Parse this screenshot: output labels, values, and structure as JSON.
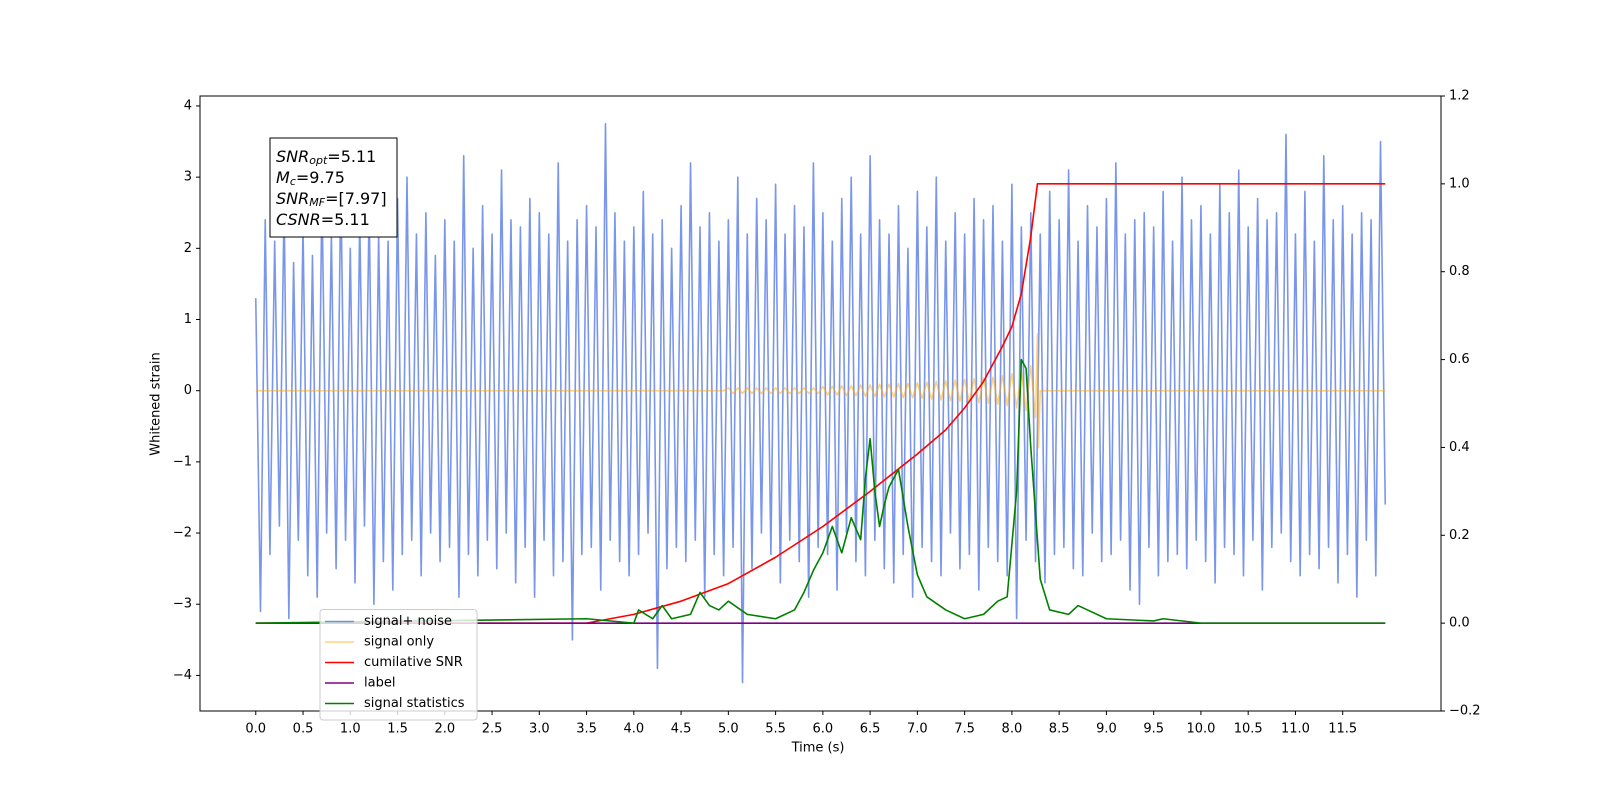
{
  "chart_data": {
    "type": "line",
    "xlabel": "Time (s)",
    "ylabel": "Whitened strain",
    "xlim": [
      -0.59,
      12.54
    ],
    "ylim": [
      -4.5,
      4.14
    ],
    "y2lim": [
      -0.2,
      1.2
    ],
    "xticks": [
      {
        "value": 0,
        "label": "0.0"
      },
      0.5,
      {
        "value": 1,
        "label": "1.0"
      },
      1.5,
      {
        "value": 2,
        "label": "2.0"
      },
      2.5,
      {
        "value": 3,
        "label": "3.0"
      },
      3.5,
      {
        "value": 4,
        "label": "4.0"
      },
      4.5,
      {
        "value": 5,
        "label": "5.0"
      },
      5.5,
      {
        "value": 6,
        "label": "6.0"
      },
      6.5,
      {
        "value": 7,
        "label": "7.0"
      },
      7.5,
      {
        "value": 8,
        "label": "8.0"
      },
      8.5,
      {
        "value": 9,
        "label": "9.0"
      },
      9.5,
      {
        "value": 10,
        "label": "10.0"
      },
      10.5,
      {
        "value": 11,
        "label": "11.0"
      },
      11.5
    ],
    "yticks": [
      {
        "value": -4,
        "label": "−4"
      },
      {
        "value": -3,
        "label": "−3"
      },
      {
        "value": -2,
        "label": "−2"
      },
      {
        "value": -1,
        "label": "−1"
      },
      0,
      1,
      2,
      3,
      4
    ],
    "y2ticks": [
      {
        "value": -0.2,
        "label": "−0.2"
      },
      {
        "value": 0,
        "label": "0.0"
      },
      0.2,
      0.4,
      0.6,
      0.8,
      {
        "value": 1,
        "label": "1.0"
      },
      1.2
    ],
    "legend": "lower left",
    "stats_box": [
      {
        "base": "SNR",
        "sub": "opt",
        "rest": "=5.11"
      },
      {
        "base": "M",
        "sub": "c",
        "rest": "=9.75"
      },
      {
        "base": "SNR",
        "sub": "MF",
        "rest": "=[7.97]"
      },
      {
        "base": "CSNR",
        "rest": "=5.11"
      }
    ],
    "series": [
      {
        "name": "signal+ noise",
        "color": "#4169e1",
        "alpha": 0.7,
        "x": [
          0,
          0.05,
          0.1,
          0.15,
          0.2,
          0.25,
          0.3,
          0.35,
          0.4,
          0.45,
          0.5,
          0.55,
          0.6,
          0.65,
          0.7,
          0.75,
          0.8,
          0.85,
          0.9,
          0.95,
          1,
          1.05,
          1.1,
          1.15,
          1.2,
          1.25,
          1.3,
          1.35,
          1.4,
          1.45,
          1.5,
          1.55,
          1.6,
          1.65,
          1.7,
          1.75,
          1.8,
          1.85,
          1.9,
          1.95,
          2,
          2.05,
          2.1,
          2.15,
          2.2,
          2.25,
          2.3,
          2.35,
          2.4,
          2.45,
          2.5,
          2.55,
          2.6,
          2.65,
          2.7,
          2.75,
          2.8,
          2.85,
          2.9,
          2.95,
          3,
          3.05,
          3.1,
          3.15,
          3.2,
          3.25,
          3.3,
          3.35,
          3.4,
          3.45,
          3.5,
          3.55,
          3.6,
          3.65,
          3.7,
          3.75,
          3.8,
          3.85,
          3.9,
          3.95,
          4,
          4.05,
          4.1,
          4.15,
          4.2,
          4.25,
          4.3,
          4.35,
          4.4,
          4.45,
          4.5,
          4.55,
          4.6,
          4.65,
          4.7,
          4.75,
          4.8,
          4.85,
          4.9,
          4.95,
          5,
          5.05,
          5.1,
          5.15,
          5.2,
          5.25,
          5.3,
          5.35,
          5.4,
          5.45,
          5.5,
          5.55,
          5.6,
          5.65,
          5.7,
          5.75,
          5.8,
          5.85,
          5.9,
          5.95,
          6,
          6.05,
          6.1,
          6.15,
          6.2,
          6.25,
          6.3,
          6.35,
          6.4,
          6.45,
          6.5,
          6.55,
          6.6,
          6.65,
          6.7,
          6.75,
          6.8,
          6.85,
          6.9,
          6.95,
          7,
          7.05,
          7.1,
          7.15,
          7.2,
          7.25,
          7.3,
          7.35,
          7.4,
          7.45,
          7.5,
          7.55,
          7.6,
          7.65,
          7.7,
          7.75,
          7.8,
          7.85,
          7.9,
          7.95,
          8,
          8.05,
          8.1,
          8.15,
          8.2,
          8.25,
          8.3,
          8.35,
          8.4,
          8.45,
          8.5,
          8.55,
          8.6,
          8.65,
          8.7,
          8.75,
          8.8,
          8.85,
          8.9,
          8.95,
          9,
          9.05,
          9.1,
          9.15,
          9.2,
          9.25,
          9.3,
          9.35,
          9.4,
          9.45,
          9.5,
          9.55,
          9.6,
          9.65,
          9.7,
          9.75,
          9.8,
          9.85,
          9.9,
          9.95,
          10,
          10.05,
          10.1,
          10.15,
          10.2,
          10.25,
          10.3,
          10.35,
          10.4,
          10.45,
          10.5,
          10.55,
          10.6,
          10.65,
          10.7,
          10.75,
          10.8,
          10.85,
          10.9,
          10.95,
          11,
          11.05,
          11.1,
          11.15,
          11.2,
          11.25,
          11.3,
          11.35,
          11.4,
          11.45,
          11.5,
          11.55,
          11.6,
          11.65,
          11.7,
          11.75,
          11.8,
          11.85,
          11.9,
          11.95
        ],
        "values": [
          1.3,
          -3.1,
          2.4,
          -2.3,
          2.1,
          -1.9,
          2.6,
          -3.2,
          1.8,
          -2.1,
          2.3,
          -2.6,
          1.9,
          -2.9,
          2.8,
          -2.0,
          2.2,
          -2.5,
          2.9,
          -2.1,
          2.0,
          -2.7,
          2.4,
          -1.9,
          2.6,
          -3.0,
          2.2,
          -2.4,
          2.1,
          -2.8,
          2.7,
          -2.3,
          3.0,
          -2.1,
          2.2,
          -2.6,
          2.5,
          -2.0,
          1.9,
          -2.4,
          2.4,
          -2.2,
          2.1,
          -2.9,
          3.3,
          -2.3,
          2.0,
          -2.6,
          2.6,
          -2.1,
          2.2,
          -2.5,
          3.1,
          -2.0,
          2.4,
          -2.7,
          2.3,
          -2.2,
          2.7,
          -2.9,
          2.5,
          -2.1,
          2.2,
          -2.6,
          3.2,
          -2.4,
          2.1,
          -3.5,
          2.4,
          -2.3,
          2.6,
          -2.2,
          2.3,
          -2.8,
          3.75,
          -2.1,
          2.5,
          -2.4,
          2.1,
          -2.6,
          2.3,
          -2.3,
          2.8,
          -2.0,
          2.2,
          -3.9,
          2.4,
          -2.5,
          2.0,
          -2.2,
          2.6,
          -2.4,
          3.2,
          -2.1,
          2.3,
          -2.9,
          2.5,
          -2.3,
          2.1,
          -2.6,
          2.4,
          -2.2,
          3.0,
          -4.1,
          2.2,
          -2.5,
          2.7,
          -2.0,
          2.4,
          -2.3,
          2.9,
          -2.7,
          2.2,
          -2.1,
          2.6,
          -2.4,
          2.3,
          -2.9,
          3.2,
          -2.2,
          2.5,
          -2.3,
          2.1,
          -2.8,
          2.7,
          -2.0,
          3.0,
          -2.4,
          2.2,
          -2.6,
          3.3,
          -2.1,
          2.4,
          -2.5,
          2.2,
          -2.7,
          2.6,
          -2.3,
          2.0,
          -2.9,
          2.8,
          -2.2,
          2.3,
          -2.4,
          3.0,
          -2.6,
          2.1,
          -2.0,
          2.5,
          -2.5,
          2.2,
          -2.3,
          2.7,
          -2.8,
          2.4,
          -2.2,
          2.6,
          -2.4,
          2.1,
          -2.6,
          2.9,
          -3.2,
          2.3,
          -2.1,
          2.5,
          -2.4,
          2.2,
          -2.7,
          2.8,
          -2.3,
          2.4,
          -2.2,
          3.1,
          -2.5,
          2.1,
          -2.6,
          2.6,
          -2.0,
          2.3,
          -2.4,
          2.7,
          -2.3,
          3.2,
          -2.1,
          2.2,
          -2.8,
          2.4,
          -3.0,
          2.5,
          -2.2,
          2.3,
          -2.6,
          2.8,
          -2.4,
          2.1,
          -2.3,
          3.0,
          -2.5,
          2.4,
          -2.1,
          2.6,
          -2.4,
          2.2,
          -2.7,
          2.9,
          -2.2,
          2.5,
          -2.3,
          3.1,
          -2.6,
          2.3,
          -2.1,
          2.7,
          -2.8,
          2.4,
          -2.2,
          2.5,
          -2.0,
          3.6,
          -2.4,
          2.2,
          -2.6,
          2.8,
          -2.3,
          2.1,
          -2.5,
          3.3,
          -2.2,
          2.4,
          -2.7,
          2.6,
          -2.3,
          2.2,
          -2.9,
          2.5,
          -2.1,
          2.4,
          -2.6,
          3.5,
          -1.6
        ]
      },
      {
        "name": "signal only",
        "color": "#ffa500",
        "alpha": 0.5,
        "x": [
          0,
          4.95,
          5,
          5.05,
          5.1,
          5.15,
          5.2,
          5.25,
          5.3,
          5.35,
          5.4,
          5.45,
          5.5,
          5.55,
          5.6,
          5.65,
          5.7,
          5.75,
          5.8,
          5.85,
          5.9,
          5.95,
          6,
          6.05,
          6.1,
          6.15,
          6.2,
          6.25,
          6.3,
          6.35,
          6.4,
          6.45,
          6.5,
          6.55,
          6.6,
          6.65,
          6.7,
          6.75,
          6.8,
          6.85,
          6.9,
          6.95,
          7,
          7.05,
          7.1,
          7.15,
          7.2,
          7.25,
          7.3,
          7.35,
          7.4,
          7.45,
          7.5,
          7.55,
          7.6,
          7.65,
          7.7,
          7.75,
          7.8,
          7.85,
          7.9,
          7.95,
          8,
          8.05,
          8.1,
          8.15,
          8.2,
          8.25,
          8.27,
          8.28,
          8.3,
          11.95
        ],
        "values": [
          0,
          0,
          0.04,
          -0.04,
          0.04,
          -0.04,
          0.04,
          -0.04,
          0.04,
          -0.04,
          0.04,
          -0.04,
          0.04,
          -0.04,
          0.04,
          -0.04,
          0.04,
          -0.04,
          0.04,
          -0.04,
          0.04,
          -0.04,
          0.06,
          -0.06,
          0.06,
          -0.06,
          0.07,
          -0.07,
          0.07,
          -0.07,
          0.08,
          -0.08,
          0.08,
          -0.08,
          0.09,
          -0.09,
          0.09,
          -0.09,
          0.1,
          -0.1,
          0.1,
          -0.1,
          0.11,
          -0.11,
          0.12,
          -0.12,
          0.13,
          -0.13,
          0.14,
          -0.14,
          0.15,
          -0.15,
          0.16,
          -0.16,
          0.17,
          -0.17,
          0.18,
          -0.18,
          0.19,
          -0.19,
          0.21,
          -0.21,
          0.24,
          -0.24,
          0.28,
          -0.28,
          0.35,
          -0.38,
          0.8,
          -0.8,
          0,
          0
        ]
      },
      {
        "name": "cumilative SNR",
        "color": "#ff0000",
        "alpha": 1,
        "axis": "y2",
        "x": [
          0,
          3.5,
          4.0,
          4.5,
          5.0,
          5.5,
          6.0,
          6.5,
          7.0,
          7.3,
          7.5,
          7.7,
          7.9,
          8.0,
          8.1,
          8.2,
          8.27,
          11.95
        ],
        "values": [
          0,
          0,
          0.02,
          0.05,
          0.09,
          0.15,
          0.22,
          0.3,
          0.385,
          0.44,
          0.49,
          0.55,
          0.63,
          0.675,
          0.75,
          0.88,
          1.0,
          1.0
        ]
      },
      {
        "name": "label",
        "color": "#800080",
        "alpha": 1,
        "axis": "y2",
        "x": [
          0,
          11.95
        ],
        "values": [
          0,
          0
        ]
      },
      {
        "name": "signal statistics",
        "color": "#008000",
        "alpha": 1,
        "axis": "y2",
        "x": [
          0,
          3.5,
          4.0,
          4.05,
          4.2,
          4.3,
          4.4,
          4.6,
          4.7,
          4.8,
          4.9,
          5.0,
          5.2,
          5.5,
          5.7,
          5.8,
          5.9,
          6.0,
          6.1,
          6.2,
          6.3,
          6.4,
          6.45,
          6.5,
          6.55,
          6.6,
          6.65,
          6.7,
          6.8,
          6.9,
          7.0,
          7.1,
          7.3,
          7.5,
          7.7,
          7.85,
          7.95,
          8.05,
          8.1,
          8.15,
          8.2,
          8.3,
          8.4,
          8.6,
          8.7,
          8.8,
          9.0,
          9.5,
          9.6,
          10.0,
          11.95
        ],
        "values": [
          0,
          0.01,
          0.0,
          0.03,
          0.01,
          0.04,
          0.01,
          0.02,
          0.07,
          0.04,
          0.03,
          0.05,
          0.02,
          0.01,
          0.03,
          0.07,
          0.12,
          0.16,
          0.22,
          0.16,
          0.24,
          0.19,
          0.33,
          0.42,
          0.3,
          0.22,
          0.27,
          0.31,
          0.35,
          0.22,
          0.11,
          0.06,
          0.03,
          0.01,
          0.02,
          0.05,
          0.06,
          0.3,
          0.6,
          0.58,
          0.4,
          0.1,
          0.03,
          0.02,
          0.04,
          0.03,
          0.01,
          0.005,
          0.01,
          0.0,
          0.0
        ]
      }
    ]
  }
}
